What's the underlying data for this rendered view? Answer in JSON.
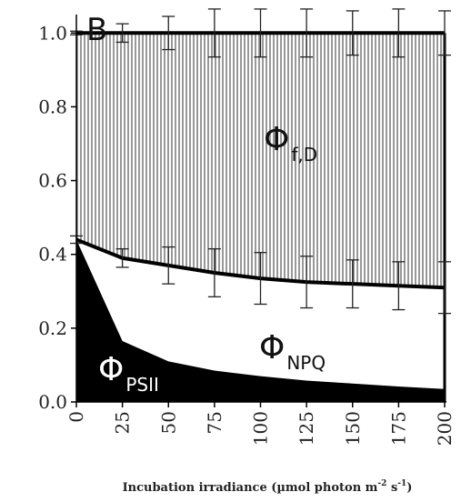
{
  "chart_data": {
    "type": "area",
    "panel_label": "B",
    "xlabel_main": "Incubation irradiance (µmol photon m",
    "xlabel_exp1": "-2",
    "xlabel_mid": " s",
    "xlabel_exp2": "-1",
    "xlabel_end": ")",
    "ylabel": "",
    "xlim": [
      0,
      200
    ],
    "ylim": [
      0,
      1.05
    ],
    "x_ticks": [
      "0",
      "25",
      "50",
      "75",
      "100",
      "125",
      "150",
      "175",
      "200"
    ],
    "y_ticks": [
      "0.0",
      "0.2",
      "0.4",
      "0.6",
      "0.8",
      "1.0"
    ],
    "x": [
      0,
      25,
      50,
      75,
      100,
      125,
      150,
      175,
      200
    ],
    "series": [
      {
        "name": "ΦPSII",
        "label_main": "Φ",
        "label_sub": "PSII",
        "fill": "#000000",
        "values": [
          0.44,
          0.165,
          0.11,
          0.085,
          0.07,
          0.058,
          0.05,
          0.042,
          0.035
        ]
      },
      {
        "name": "ΦNPQ",
        "label_main": "Φ",
        "label_sub": "NPQ",
        "fill": "#ffffff",
        "upper": [
          0.44,
          0.39,
          0.37,
          0.35,
          0.335,
          0.325,
          0.32,
          0.315,
          0.31
        ],
        "error": [
          0.01,
          0.025,
          0.05,
          0.065,
          0.07,
          0.07,
          0.065,
          0.065,
          0.07
        ]
      },
      {
        "name": "Φf,D",
        "label_main": "Φ",
        "label_sub": "f,D",
        "fill": "vertical-hatch",
        "upper": [
          1.0,
          1.0,
          1.0,
          1.0,
          1.0,
          1.0,
          1.0,
          1.0,
          1.0
        ],
        "error": [
          0.005,
          0.025,
          0.045,
          0.065,
          0.065,
          0.065,
          0.06,
          0.065,
          0.06
        ]
      }
    ],
    "grid": false,
    "legend": "none"
  }
}
